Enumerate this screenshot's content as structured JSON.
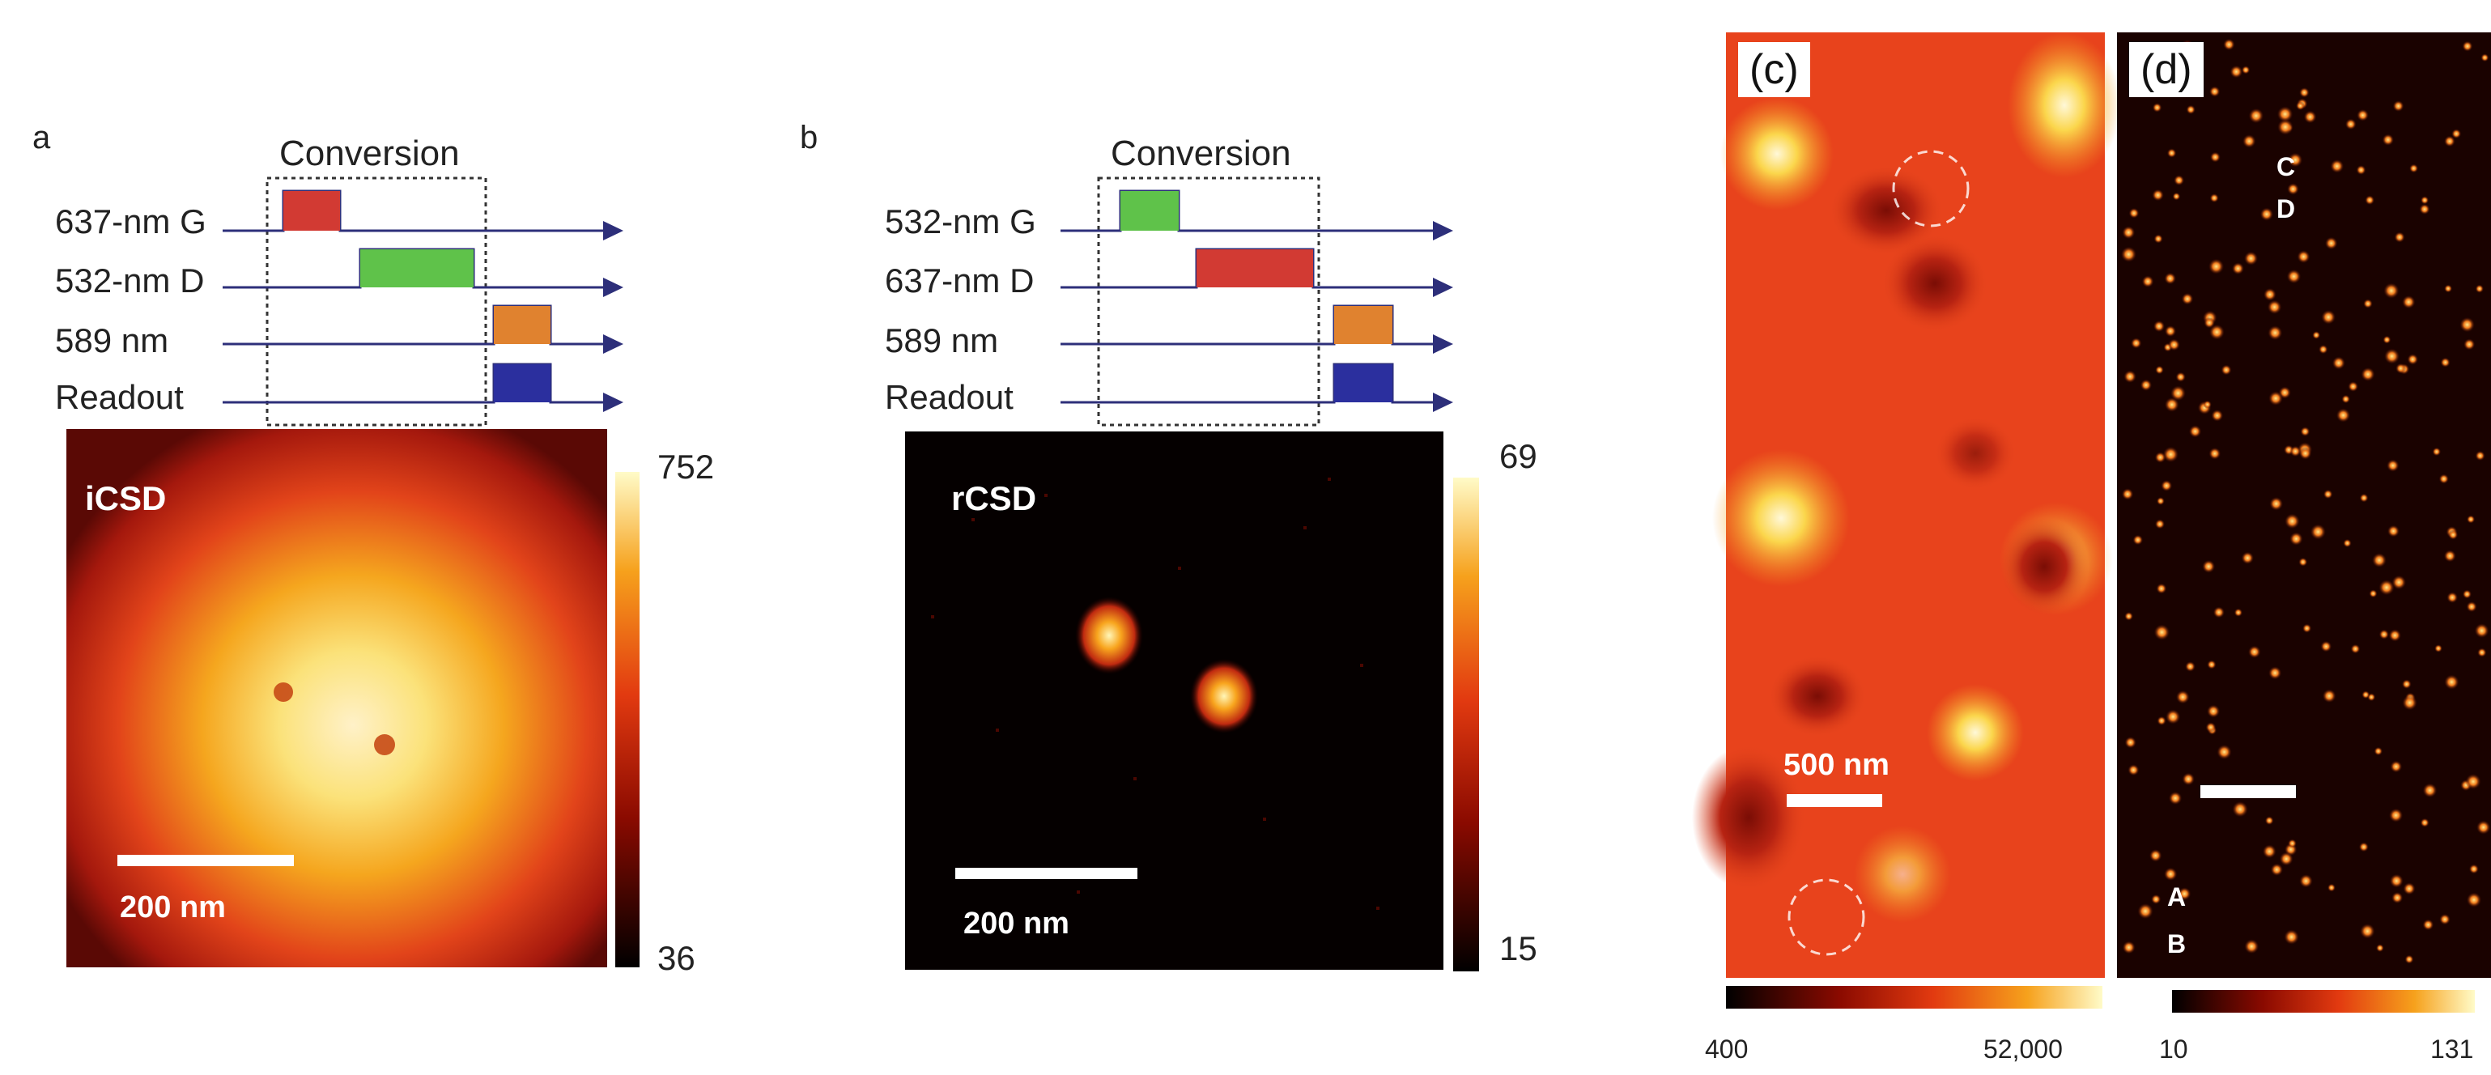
{
  "figure": {
    "panel_a": {
      "letter": "a",
      "conversion_label": "Conversion",
      "sequence": [
        "637-nm G",
        "532-nm D",
        "589 nm",
        "Readout"
      ],
      "pulse_colors": [
        "#d23a33",
        "#5fc24a",
        "#e0822f",
        "#2b2f9e"
      ],
      "image_label": "iCSD",
      "scale_label": "200 nm",
      "colorbar": {
        "max": "752",
        "min": "36"
      }
    },
    "panel_b": {
      "letter": "b",
      "conversion_label": "Conversion",
      "sequence": [
        "532-nm G",
        "637-nm D",
        "589 nm",
        "Readout"
      ],
      "pulse_colors": [
        "#5fc24a",
        "#d23a33",
        "#e0822f",
        "#2b2f9e"
      ],
      "image_label": "rCSD",
      "scale_label": "200 nm",
      "colorbar": {
        "max": "69",
        "min": "15"
      }
    },
    "panel_c": {
      "letter": "(c)",
      "scale_label": "500 nm",
      "colorbar": {
        "min": "400",
        "max": "52,000"
      }
    },
    "panel_d": {
      "letter": "(d)",
      "annotations": [
        "C",
        "D",
        "A",
        "B"
      ],
      "colorbar": {
        "min": "10",
        "max": "131"
      }
    }
  }
}
